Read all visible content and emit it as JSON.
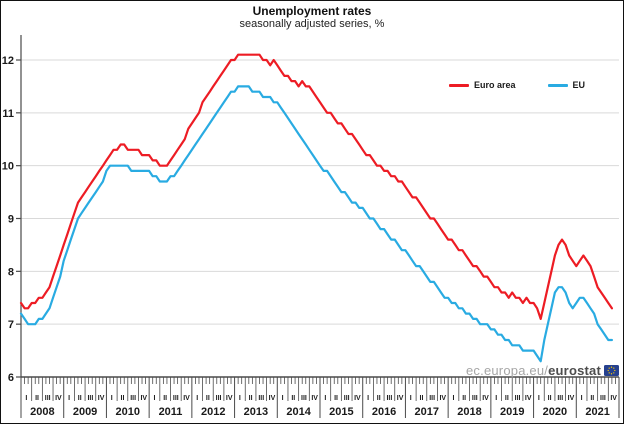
{
  "header": {
    "title": "Unemployment rates",
    "subtitle": "seasonally adjusted series, %"
  },
  "watermark": {
    "prefix": "ec.europa.eu/",
    "brand": "eurostat"
  },
  "colors": {
    "euro_area": "#ed1c24",
    "eu": "#29abe2",
    "gridline": "#d9d9d9",
    "axis": "#4a4a4a",
    "label": "#1a1a1a"
  },
  "chart_data": {
    "type": "line",
    "title": "Unemployment rates",
    "subtitle": "seasonally adjusted series, %",
    "x_unit": "month",
    "x_start": "2008-01",
    "x_end": "2021-11",
    "years": [
      "2008",
      "2009",
      "2010",
      "2011",
      "2012",
      "2013",
      "2014",
      "2015",
      "2016",
      "2017",
      "2018",
      "2019",
      "2020",
      "2021"
    ],
    "quarter_labels": [
      "I",
      "II",
      "III",
      "IV"
    ],
    "ylim": [
      6,
      12
    ],
    "yticks": [
      6,
      7,
      8,
      9,
      10,
      11,
      12
    ],
    "grid": "horizontal",
    "legend_position": "inside-top-right",
    "series": [
      {
        "name": "Euro area",
        "color": "#ed1c24",
        "values": [
          7.4,
          7.3,
          7.3,
          7.4,
          7.4,
          7.5,
          7.5,
          7.6,
          7.7,
          7.9,
          8.1,
          8.3,
          8.5,
          8.7,
          8.9,
          9.1,
          9.3,
          9.4,
          9.5,
          9.6,
          9.7,
          9.8,
          9.9,
          10.0,
          10.1,
          10.2,
          10.3,
          10.3,
          10.4,
          10.4,
          10.3,
          10.3,
          10.3,
          10.3,
          10.2,
          10.2,
          10.2,
          10.1,
          10.1,
          10.0,
          10.0,
          10.0,
          10.1,
          10.2,
          10.3,
          10.4,
          10.5,
          10.7,
          10.8,
          10.9,
          11.0,
          11.2,
          11.3,
          11.4,
          11.5,
          11.6,
          11.7,
          11.8,
          11.9,
          12.0,
          12.0,
          12.1,
          12.1,
          12.1,
          12.1,
          12.1,
          12.1,
          12.1,
          12.0,
          12.0,
          11.9,
          12.0,
          11.9,
          11.8,
          11.7,
          11.7,
          11.6,
          11.6,
          11.5,
          11.6,
          11.5,
          11.5,
          11.4,
          11.3,
          11.2,
          11.1,
          11.0,
          11.0,
          10.9,
          10.8,
          10.8,
          10.7,
          10.6,
          10.6,
          10.5,
          10.4,
          10.3,
          10.2,
          10.2,
          10.1,
          10.0,
          10.0,
          9.9,
          9.9,
          9.8,
          9.8,
          9.7,
          9.7,
          9.6,
          9.5,
          9.4,
          9.4,
          9.3,
          9.2,
          9.1,
          9.0,
          9.0,
          8.9,
          8.8,
          8.7,
          8.6,
          8.6,
          8.5,
          8.4,
          8.4,
          8.3,
          8.2,
          8.1,
          8.1,
          8.0,
          7.9,
          7.9,
          7.8,
          7.7,
          7.7,
          7.6,
          7.6,
          7.5,
          7.6,
          7.5,
          7.5,
          7.4,
          7.5,
          7.4,
          7.4,
          7.3,
          7.1,
          7.4,
          7.7,
          8.0,
          8.3,
          8.5,
          8.6,
          8.5,
          8.3,
          8.2,
          8.1,
          8.2,
          8.3,
          8.2,
          8.1,
          7.9,
          7.7,
          7.6,
          7.5,
          7.4,
          7.3
        ]
      },
      {
        "name": "EU",
        "color": "#29abe2",
        "values": [
          7.2,
          7.1,
          7.0,
          7.0,
          7.0,
          7.1,
          7.1,
          7.2,
          7.3,
          7.5,
          7.7,
          7.9,
          8.2,
          8.4,
          8.6,
          8.8,
          9.0,
          9.1,
          9.2,
          9.3,
          9.4,
          9.5,
          9.6,
          9.7,
          9.9,
          10.0,
          10.0,
          10.0,
          10.0,
          10.0,
          10.0,
          9.9,
          9.9,
          9.9,
          9.9,
          9.9,
          9.9,
          9.8,
          9.8,
          9.7,
          9.7,
          9.7,
          9.8,
          9.8,
          9.9,
          10.0,
          10.1,
          10.2,
          10.3,
          10.4,
          10.5,
          10.6,
          10.7,
          10.8,
          10.9,
          11.0,
          11.1,
          11.2,
          11.3,
          11.4,
          11.4,
          11.5,
          11.5,
          11.5,
          11.5,
          11.4,
          11.4,
          11.4,
          11.3,
          11.3,
          11.3,
          11.2,
          11.2,
          11.1,
          11.0,
          10.9,
          10.8,
          10.7,
          10.6,
          10.5,
          10.4,
          10.3,
          10.2,
          10.1,
          10.0,
          9.9,
          9.9,
          9.8,
          9.7,
          9.6,
          9.5,
          9.5,
          9.4,
          9.3,
          9.3,
          9.2,
          9.2,
          9.1,
          9.0,
          9.0,
          8.9,
          8.8,
          8.8,
          8.7,
          8.6,
          8.6,
          8.5,
          8.4,
          8.4,
          8.3,
          8.2,
          8.1,
          8.1,
          8.0,
          7.9,
          7.8,
          7.8,
          7.7,
          7.6,
          7.5,
          7.5,
          7.4,
          7.4,
          7.3,
          7.3,
          7.2,
          7.2,
          7.1,
          7.1,
          7.0,
          7.0,
          7.0,
          6.9,
          6.9,
          6.8,
          6.8,
          6.7,
          6.7,
          6.6,
          6.6,
          6.6,
          6.5,
          6.5,
          6.5,
          6.5,
          6.4,
          6.3,
          6.7,
          7.0,
          7.3,
          7.6,
          7.7,
          7.7,
          7.6,
          7.4,
          7.3,
          7.4,
          7.5,
          7.5,
          7.4,
          7.3,
          7.2,
          7.0,
          6.9,
          6.8,
          6.7,
          6.7
        ]
      }
    ]
  }
}
